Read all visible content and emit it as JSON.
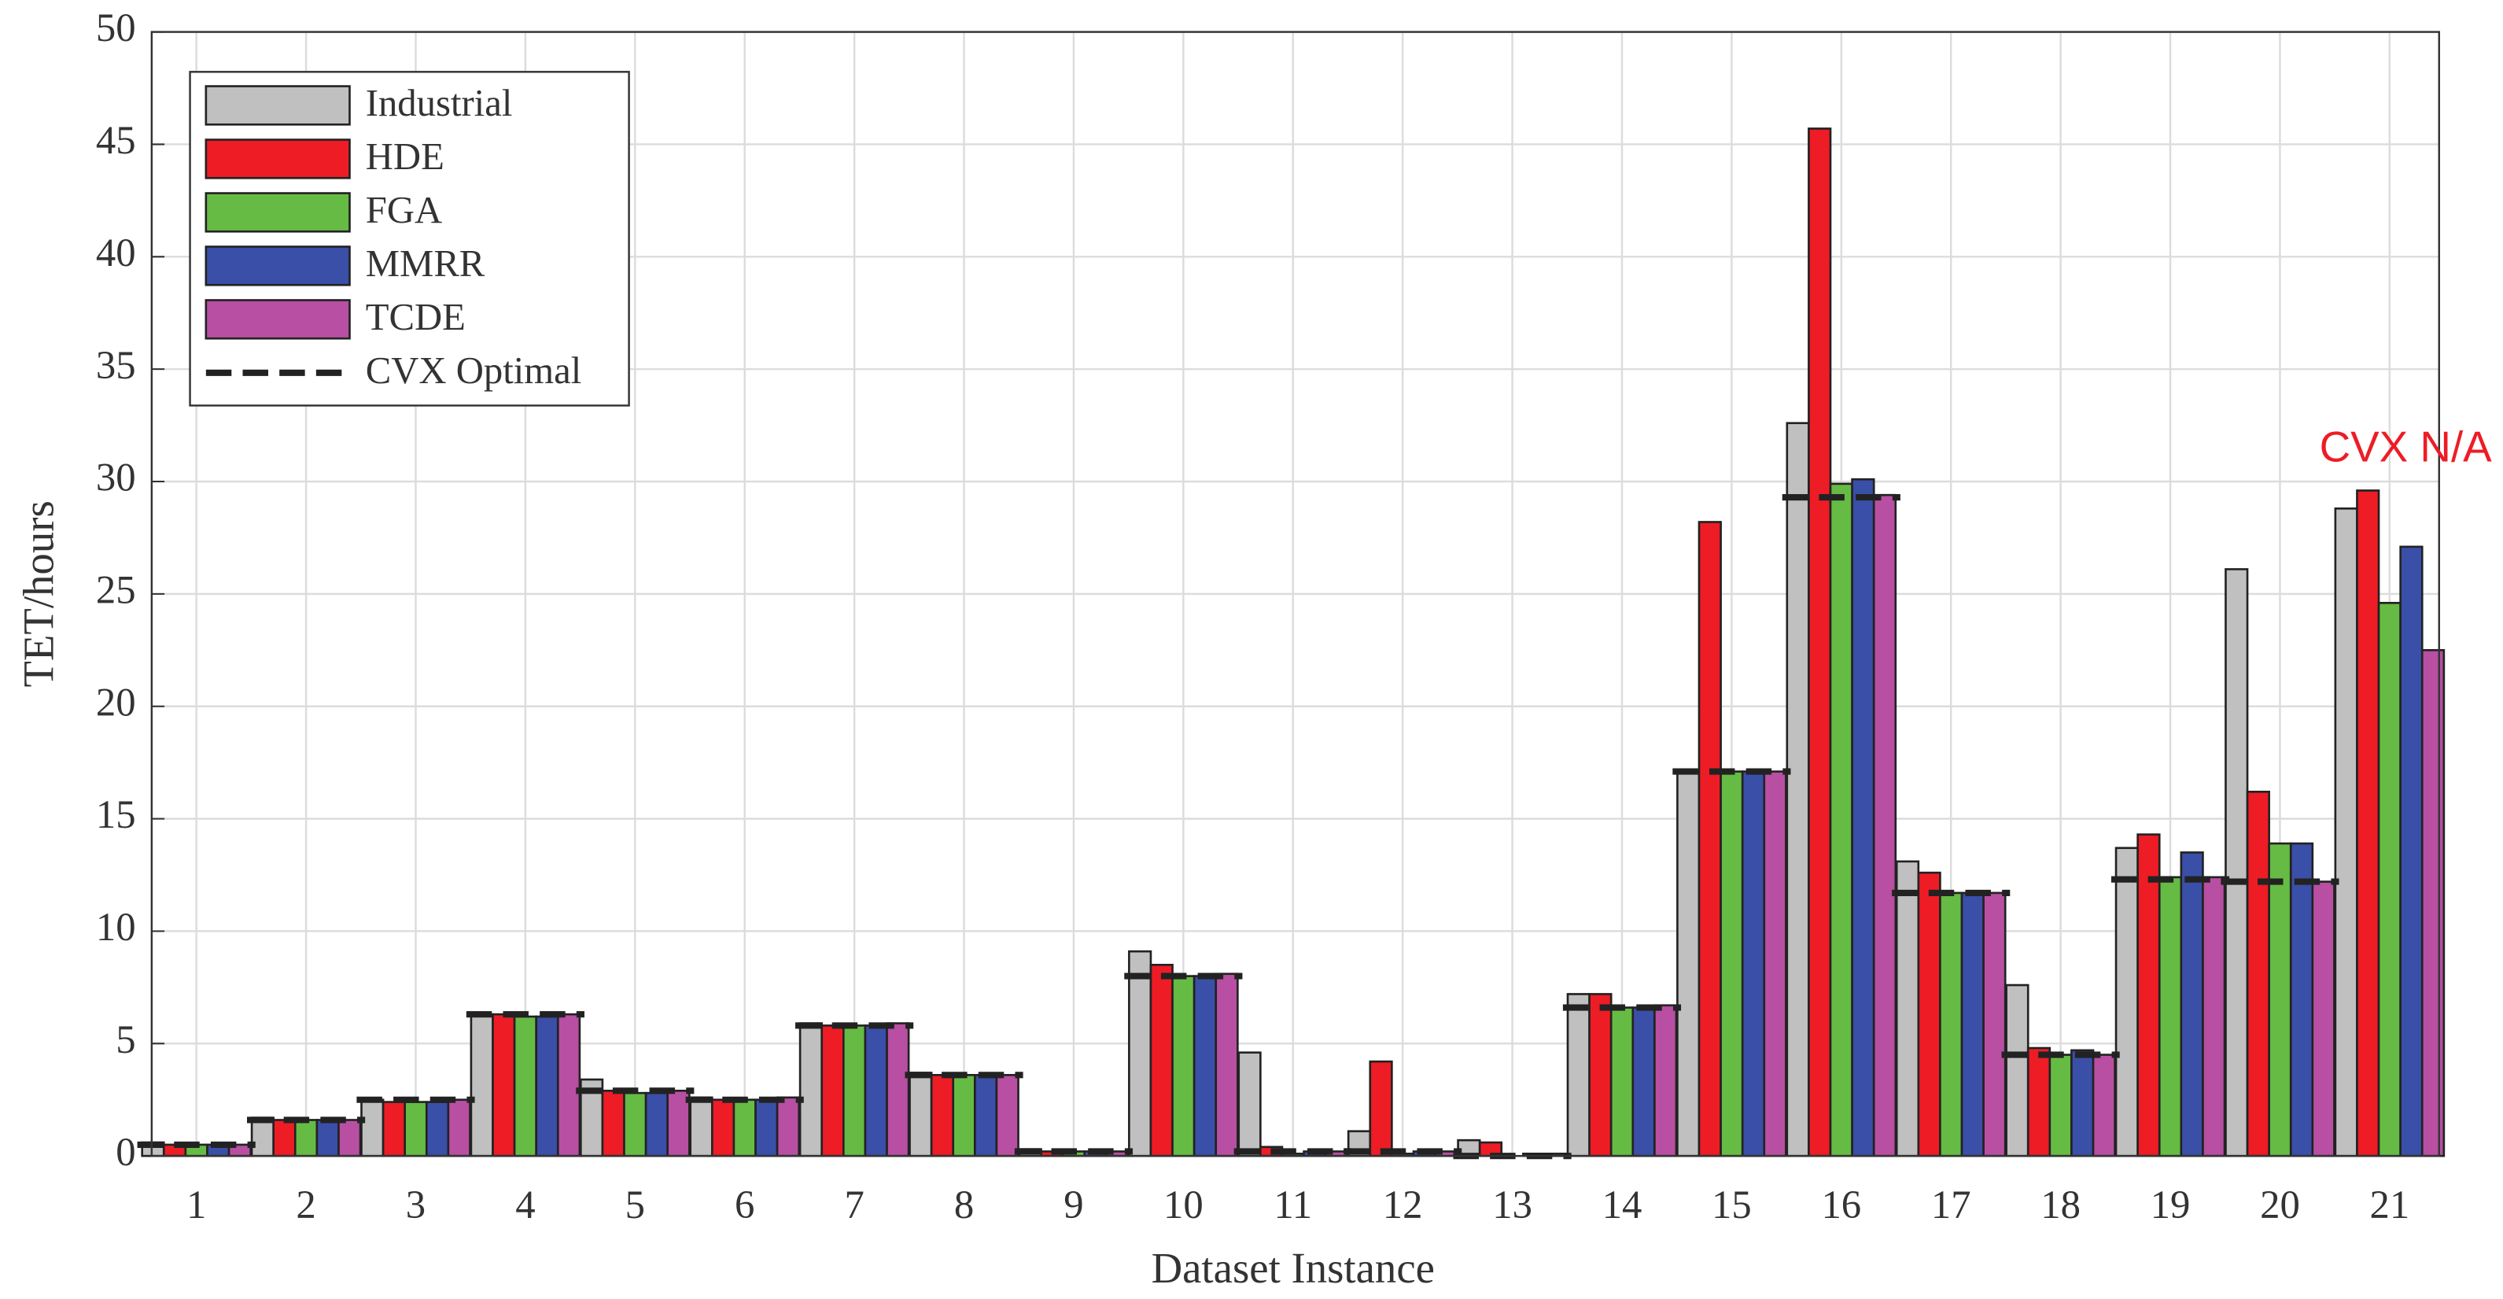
{
  "chart_data": {
    "type": "bar",
    "x_label": "Dataset Instance",
    "y_label": "TET/hours",
    "categories": [
      "1",
      "2",
      "3",
      "4",
      "5",
      "6",
      "7",
      "8",
      "9",
      "10",
      "11",
      "12",
      "13",
      "14",
      "15",
      "16",
      "17",
      "18",
      "19",
      "20",
      "21"
    ],
    "series": [
      {
        "name": "Industrial",
        "color": "#c0c0c0",
        "values": [
          0.6,
          1.7,
          2.5,
          6.3,
          3.4,
          2.6,
          5.9,
          3.7,
          0.3,
          9.1,
          4.6,
          1.1,
          0.7,
          7.2,
          17.1,
          32.6,
          13.1,
          7.6,
          13.7,
          26.1,
          28.8
        ]
      },
      {
        "name": "HDE",
        "color": "#ee1c25",
        "values": [
          0.5,
          1.6,
          2.4,
          6.3,
          2.9,
          2.5,
          5.8,
          3.6,
          0.2,
          8.5,
          0.4,
          4.2,
          0.6,
          7.2,
          28.2,
          45.7,
          12.6,
          4.8,
          14.3,
          16.2,
          29.6
        ]
      },
      {
        "name": "FGA",
        "color": "#66bb44",
        "values": [
          0.5,
          1.6,
          2.4,
          6.2,
          2.8,
          2.5,
          5.8,
          3.6,
          0.2,
          8.0,
          0.1,
          0.1,
          0,
          6.6,
          17.1,
          29.9,
          11.7,
          4.5,
          12.4,
          13.9,
          24.6
        ]
      },
      {
        "name": "MMRR",
        "color": "#3a4fa8",
        "values": [
          0.5,
          1.6,
          2.4,
          6.2,
          2.8,
          2.5,
          5.8,
          3.6,
          0.2,
          8.0,
          0.2,
          0.2,
          0.1,
          6.6,
          17.1,
          30.1,
          11.7,
          4.7,
          13.5,
          13.9,
          27.1
        ]
      },
      {
        "name": "TCDE",
        "color": "#b84fa2",
        "values": [
          0.5,
          1.6,
          2.5,
          6.3,
          2.9,
          2.6,
          5.9,
          3.6,
          0.2,
          8.1,
          0.2,
          0.2,
          0.1,
          6.7,
          17.1,
          29.4,
          11.7,
          4.5,
          12.4,
          12.2,
          22.5
        ]
      },
      {
        "name": "CVX Optimal",
        "color": "#222222",
        "line_style": "dashed",
        "values": [
          0.5,
          1.6,
          2.5,
          6.3,
          2.9,
          2.5,
          5.8,
          3.6,
          0.2,
          8.0,
          0.2,
          0.2,
          0.0,
          6.6,
          17.1,
          29.3,
          11.7,
          4.5,
          12.3,
          12.2,
          null
        ]
      }
    ],
    "annotation": {
      "text": "CVX N/A",
      "category": "21",
      "color": "#ee1c25"
    },
    "ylim": [
      0,
      50
    ],
    "yticks": [
      0,
      5,
      10,
      15,
      20,
      25,
      30,
      35,
      40,
      45,
      50
    ],
    "grid": true,
    "legend": "upper left"
  }
}
